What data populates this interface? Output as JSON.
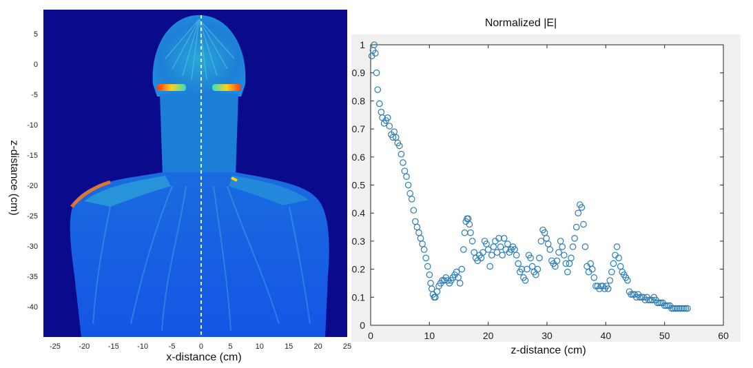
{
  "chart_data": [
    {
      "type": "heatmap",
      "xlabel": "x-distance (cm)",
      "ylabel": "z-distance (cm)",
      "xlim": [
        -27,
        25
      ],
      "ylim": [
        -45,
        9
      ],
      "x_ticks": [
        -25,
        -20,
        -15,
        -10,
        -5,
        0,
        5,
        10,
        15,
        20,
        25
      ],
      "y_ticks": [
        5,
        0,
        -5,
        -10,
        -15,
        -20,
        -25,
        -30,
        -35,
        -40
      ],
      "background_color": "#0a0a8c",
      "colormap": "jet",
      "dashed_line_x": 0
    },
    {
      "type": "scatter",
      "title": "Normalized |E|",
      "xlabel": "z-distance (cm)",
      "ylabel": "",
      "xlim": [
        0,
        60
      ],
      "ylim": [
        0,
        1
      ],
      "x_ticks": [
        0,
        10,
        20,
        30,
        40,
        50,
        60
      ],
      "y_ticks": [
        0,
        0.1,
        0.2,
        0.3,
        0.4,
        0.5,
        0.6,
        0.7,
        0.8,
        0.9,
        1
      ],
      "marker_color": "#2a7bb5",
      "x": [
        0.2,
        0.4,
        0.6,
        0.8,
        1.0,
        1.2,
        1.5,
        1.8,
        2.0,
        2.3,
        2.6,
        2.9,
        3.2,
        3.5,
        3.8,
        4.0,
        4.3,
        4.6,
        4.9,
        5.2,
        5.5,
        5.8,
        6.1,
        6.4,
        6.7,
        7.0,
        7.3,
        7.6,
        7.9,
        8.2,
        8.5,
        8.8,
        9.1,
        9.4,
        9.7,
        10.0,
        10.2,
        10.4,
        10.6,
        10.8,
        11.0,
        11.3,
        11.6,
        11.9,
        12.2,
        12.5,
        12.8,
        13.1,
        13.4,
        13.7,
        14.0,
        14.3,
        14.6,
        14.9,
        15.2,
        15.5,
        15.8,
        16.0,
        16.2,
        16.4,
        16.6,
        16.8,
        17.0,
        17.3,
        17.6,
        17.9,
        18.2,
        18.5,
        18.8,
        19.1,
        19.4,
        19.7,
        20.0,
        20.3,
        20.6,
        20.9,
        21.2,
        21.5,
        21.8,
        22.1,
        22.4,
        22.7,
        23.0,
        23.3,
        23.6,
        23.9,
        24.2,
        24.5,
        24.8,
        25.1,
        25.4,
        25.7,
        26.0,
        26.3,
        26.6,
        26.9,
        27.2,
        27.5,
        27.8,
        28.1,
        28.4,
        28.7,
        29.0,
        29.3,
        29.6,
        29.9,
        30.2,
        30.5,
        30.8,
        31.1,
        31.4,
        31.7,
        32.0,
        32.3,
        32.6,
        32.9,
        33.2,
        33.5,
        33.8,
        34.1,
        34.4,
        34.7,
        35.0,
        35.3,
        35.6,
        35.9,
        36.2,
        36.5,
        36.8,
        37.1,
        37.4,
        37.7,
        38.0,
        38.3,
        38.6,
        38.9,
        39.2,
        39.5,
        39.8,
        40.1,
        40.4,
        40.7,
        41.0,
        41.3,
        41.6,
        41.9,
        42.2,
        42.5,
        42.8,
        43.1,
        43.4,
        43.7,
        44.0,
        44.3,
        44.6,
        44.9,
        45.2,
        45.5,
        45.8,
        46.1,
        46.4,
        46.7,
        47.0,
        47.3,
        47.6,
        47.9,
        48.2,
        48.5,
        48.8,
        49.1,
        49.4,
        49.7,
        50.0,
        50.3,
        50.6,
        50.9,
        51.2,
        51.5,
        51.8,
        52.1,
        52.4,
        52.7,
        53.0,
        53.3,
        53.6,
        53.9
      ],
      "y": [
        0.96,
        0.98,
        1.0,
        0.97,
        0.9,
        0.84,
        0.79,
        0.76,
        0.74,
        0.72,
        0.73,
        0.74,
        0.71,
        0.68,
        0.67,
        0.69,
        0.67,
        0.65,
        0.64,
        0.61,
        0.58,
        0.55,
        0.53,
        0.5,
        0.47,
        0.45,
        0.41,
        0.37,
        0.35,
        0.33,
        0.31,
        0.29,
        0.27,
        0.24,
        0.21,
        0.18,
        0.15,
        0.13,
        0.11,
        0.1,
        0.1,
        0.12,
        0.14,
        0.15,
        0.16,
        0.16,
        0.17,
        0.16,
        0.15,
        0.16,
        0.17,
        0.18,
        0.19,
        0.17,
        0.15,
        0.2,
        0.27,
        0.33,
        0.37,
        0.38,
        0.38,
        0.36,
        0.33,
        0.3,
        0.26,
        0.24,
        0.23,
        0.25,
        0.24,
        0.26,
        0.3,
        0.29,
        0.27,
        0.21,
        0.25,
        0.28,
        0.3,
        0.26,
        0.31,
        0.28,
        0.25,
        0.31,
        0.27,
        0.29,
        0.26,
        0.27,
        0.28,
        0.27,
        0.25,
        0.22,
        0.19,
        0.2,
        0.17,
        0.16,
        0.2,
        0.25,
        0.24,
        0.21,
        0.19,
        0.18,
        0.2,
        0.24,
        0.3,
        0.34,
        0.33,
        0.31,
        0.29,
        0.27,
        0.23,
        0.22,
        0.21,
        0.23,
        0.26,
        0.3,
        0.28,
        0.25,
        0.22,
        0.19,
        0.22,
        0.24,
        0.28,
        0.31,
        0.35,
        0.4,
        0.43,
        0.42,
        0.36,
        0.28,
        0.21,
        0.19,
        0.22,
        0.2,
        0.17,
        0.14,
        0.14,
        0.13,
        0.14,
        0.14,
        0.13,
        0.14,
        0.13,
        0.16,
        0.19,
        0.22,
        0.25,
        0.28,
        0.24,
        0.21,
        0.19,
        0.18,
        0.17,
        0.16,
        0.12,
        0.11,
        0.11,
        0.11,
        0.1,
        0.11,
        0.1,
        0.1,
        0.1,
        0.09,
        0.1,
        0.09,
        0.09,
        0.09,
        0.1,
        0.09,
        0.08,
        0.08,
        0.08,
        0.08,
        0.07,
        0.07,
        0.07,
        0.07,
        0.06,
        0.06,
        0.06,
        0.06,
        0.06,
        0.06,
        0.06,
        0.06,
        0.06,
        0.06
      ]
    }
  ]
}
